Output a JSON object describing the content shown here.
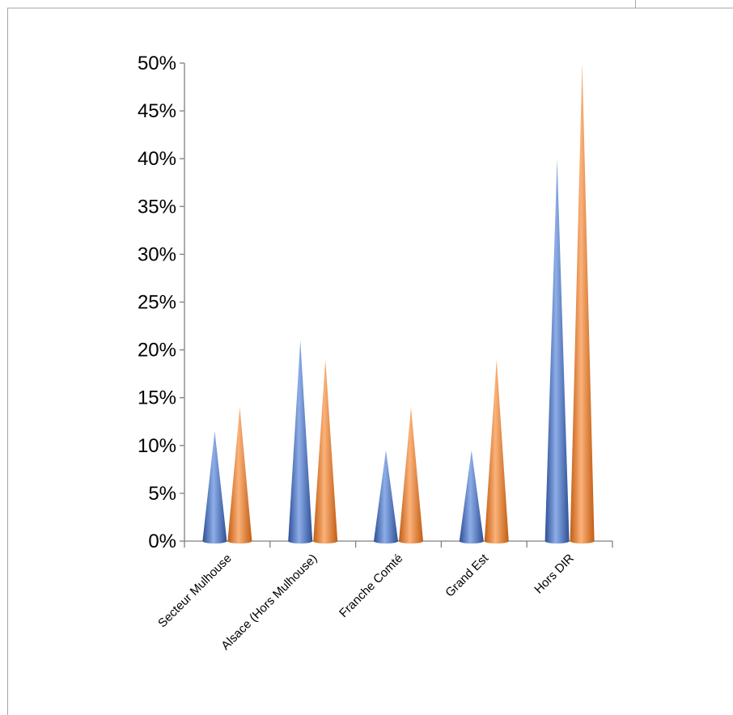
{
  "colors": {
    "series_a": "#4a74c6",
    "series_b": "#f5893a",
    "axis": "#808080",
    "frame": "#a6a6a6"
  },
  "chart_data": {
    "type": "bar",
    "bar_shape": "cone",
    "categories": [
      "Secteur Mulhouse",
      "Alsace (Hors Mulhouse)",
      "Franche Comté",
      "Grand Est",
      "Hors DIR"
    ],
    "series": [
      {
        "values": [
          0.115,
          0.21,
          0.095,
          0.095,
          0.4
        ]
      },
      {
        "values": [
          0.14,
          0.19,
          0.14,
          0.19,
          0.5
        ]
      }
    ],
    "ylim": [
      0,
      0.5
    ],
    "yticks": [
      0,
      0.05,
      0.1,
      0.15,
      0.2,
      0.25,
      0.3,
      0.35,
      0.4,
      0.45,
      0.5
    ],
    "ytick_labels": [
      "0%",
      "5%",
      "10%",
      "15%",
      "20%",
      "25%",
      "30%",
      "35%",
      "40%",
      "45%",
      "50%"
    ],
    "grid": false,
    "legend": "none"
  }
}
